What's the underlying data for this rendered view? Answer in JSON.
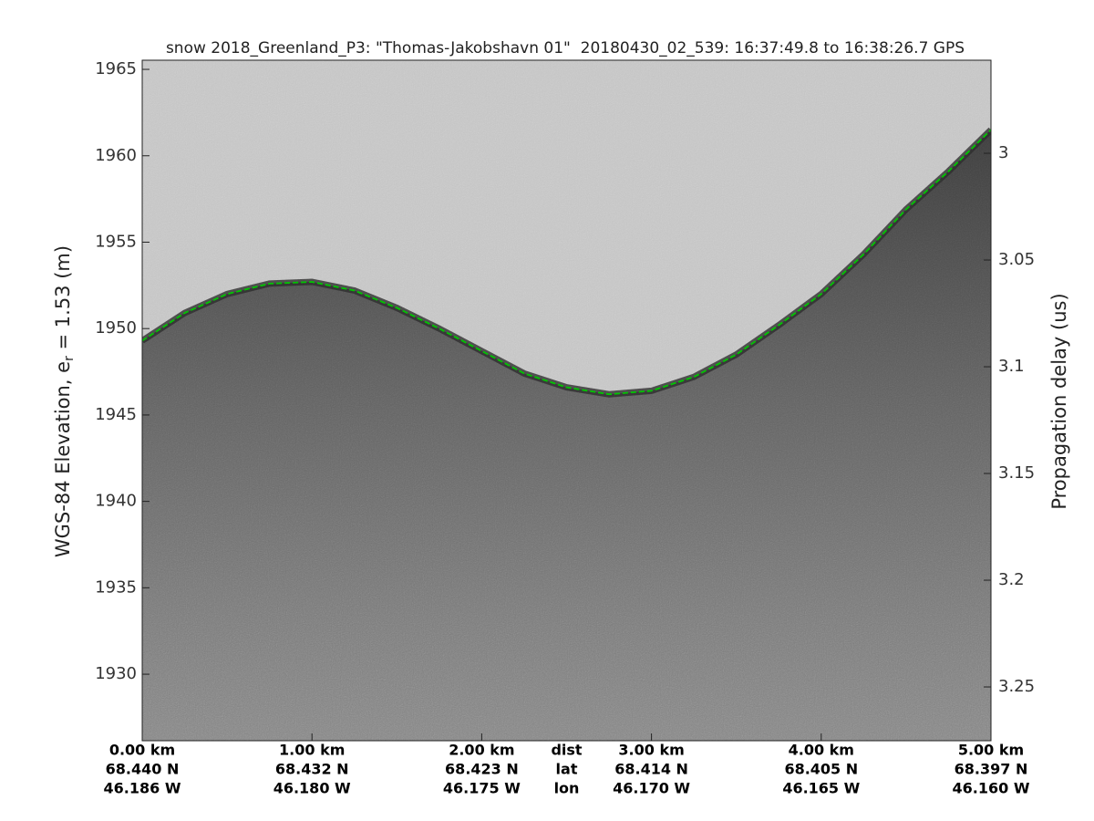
{
  "chart_data": {
    "type": "echogram",
    "title": "snow 2018_Greenland_P3: \"Thomas-Jakobshavn 01\"  20180430_02_539: 16:37:49.8 to 16:38:26.7 GPS",
    "ylabel": [
      "WGS-84 Elevation, e",
      "r",
      " = 1.53 (m)"
    ],
    "y2label": "Propagation delay (us)",
    "axis_row_labels": [
      "dist",
      "lat",
      "lon"
    ],
    "xlim": [
      0,
      5
    ],
    "xticks": [
      {
        "value": 0,
        "label": "0.00 km"
      },
      {
        "value": 1,
        "label": "1.00 km"
      },
      {
        "value": 2,
        "label": "2.00 km"
      },
      {
        "value": 3,
        "label": "3.00 km"
      },
      {
        "value": 4,
        "label": "4.00 km"
      },
      {
        "value": 5,
        "label": "5.00 km"
      }
    ],
    "lat_labels": [
      "68.440 N",
      "68.432 N",
      "68.423 N",
      "68.414 N",
      "68.405 N",
      "68.397 N"
    ],
    "lon_labels": [
      "46.186 W",
      "46.180 W",
      "46.175 W",
      "46.170 W",
      "46.165 W",
      "46.160 W"
    ],
    "ylim": [
      1926.15,
      1965.53
    ],
    "yticks": [
      1930,
      1935,
      1940,
      1945,
      1950,
      1955,
      1960,
      1965
    ],
    "y2lim": [
      2.9564,
      3.2752
    ],
    "y2_reversed": true,
    "y2ticks": [
      3,
      3.05,
      3.1,
      3.15,
      3.2,
      3.25
    ],
    "series": [
      {
        "color": "#00c000",
        "x": [
          0,
          0.25,
          0.5,
          0.75,
          1,
          1.25,
          1.5,
          1.75,
          2,
          2.25,
          2.5,
          2.75,
          3,
          3.25,
          3.5,
          3.75,
          4,
          4.25,
          4.5,
          4.75,
          5
        ],
        "values": [
          1949.3,
          1950.9,
          1952.0,
          1952.6,
          1952.7,
          1952.2,
          1951.2,
          1950.0,
          1948.7,
          1947.4,
          1946.6,
          1946.2,
          1946.4,
          1947.2,
          1948.5,
          1950.2,
          1952.0,
          1954.3,
          1956.9,
          1959.1,
          1961.5
        ]
      }
    ]
  }
}
